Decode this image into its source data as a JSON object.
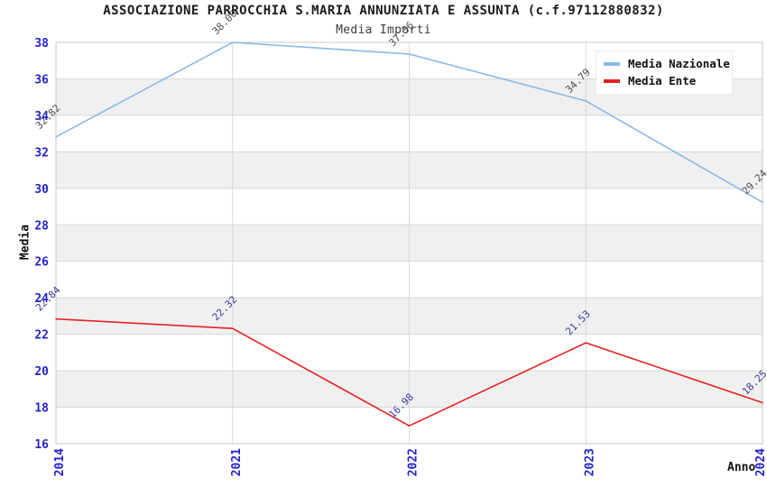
{
  "title": "ASSOCIAZIONE PARROCCHIA S.MARIA ANNUNZIATA E ASSUNTA (c.f.97112880832)",
  "subtitle": "Media Importi",
  "axis": {
    "x_label": "Anno",
    "y_label": "Media"
  },
  "legend": [
    {
      "label": "Media Nazionale",
      "color": "#88b9e8"
    },
    {
      "label": "Media Ente",
      "color": "#e32222"
    }
  ],
  "colors": {
    "tick_label": "#2323cc",
    "grid": "#d8d8d8",
    "frame": "#c8c8c8",
    "band_white": "#ffffff",
    "band_gray": "#f0f0f0"
  },
  "chart_data": {
    "type": "line",
    "title": "Media Importi",
    "xlabel": "Anno",
    "ylabel": "Media",
    "x": [
      "2014",
      "2021",
      "2022",
      "2023",
      "2024"
    ],
    "series": [
      {
        "name": "Media Nazionale",
        "color": "#88b9e8",
        "label_color": "#4d4d4d",
        "values": [
          32.82,
          38.0,
          37.36,
          34.79,
          29.24
        ],
        "point_labels": [
          "32.82",
          "38.00",
          "37.36",
          "34.79",
          "29.24"
        ]
      },
      {
        "name": "Media Ente",
        "color": "#e32222",
        "label_color": "#3a3a9e",
        "values": [
          22.84,
          22.32,
          16.98,
          21.53,
          18.25
        ],
        "point_labels": [
          "22.84",
          "22.32",
          "16.98",
          "21.53",
          "18.25"
        ]
      }
    ],
    "ylim": [
      16,
      38
    ],
    "yticks": [
      38,
      36,
      34,
      32,
      30,
      28,
      26,
      24,
      22,
      20,
      18,
      16
    ],
    "grid": true,
    "banded_background": true,
    "legend_position": "top-right"
  }
}
